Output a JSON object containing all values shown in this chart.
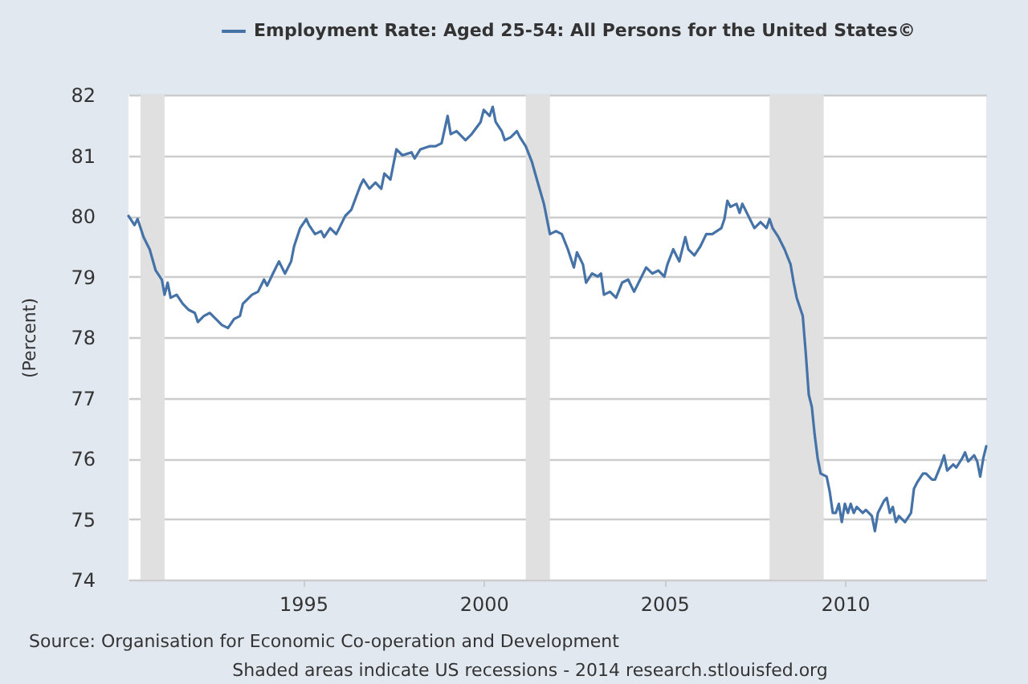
{
  "chart_data": {
    "type": "line",
    "ylabel": "(Percent)",
    "x": [
      "1990-03",
      "1990-05",
      "1990-06",
      "1990-08",
      "1990-10",
      "1990-12",
      "1991-02",
      "1991-03",
      "1991-04",
      "1991-05",
      "1991-07",
      "1991-09",
      "1991-11",
      "1992-01",
      "1992-02",
      "1992-04",
      "1992-06",
      "1992-08",
      "1992-10",
      "1992-12",
      "1993-02",
      "1993-04",
      "1993-05",
      "1993-08",
      "1993-10",
      "1993-12",
      "1994-01",
      "1994-03",
      "1994-05",
      "1994-07",
      "1994-09",
      "1994-10",
      "1994-12",
      "1995-02",
      "1995-03",
      "1995-05",
      "1995-07",
      "1995-08",
      "1995-10",
      "1995-12",
      "1996-01",
      "1996-03",
      "1996-05",
      "1996-08",
      "1996-09",
      "1996-11",
      "1997-01",
      "1997-03",
      "1997-04",
      "1997-06",
      "1997-08",
      "1997-10",
      "1998-01",
      "1998-02",
      "1998-04",
      "1998-07",
      "1998-09",
      "1998-11",
      "1999-01",
      "1999-02",
      "1999-04",
      "1999-07",
      "1999-09",
      "1999-12",
      "2000-01",
      "2000-03",
      "2000-04",
      "2000-05",
      "2000-07",
      "2000-08",
      "2000-10",
      "2000-12",
      "2001-01",
      "2001-03",
      "2001-05",
      "2001-07",
      "2001-09",
      "2001-11",
      "2002-01",
      "2002-03",
      "2002-05",
      "2002-07",
      "2002-08",
      "2002-10",
      "2002-11",
      "2003-01",
      "2003-03",
      "2003-04",
      "2003-05",
      "2003-07",
      "2003-09",
      "2003-11",
      "2004-01",
      "2004-03",
      "2004-05",
      "2004-07",
      "2004-09",
      "2004-11",
      "2005-01",
      "2005-02",
      "2005-04",
      "2005-06",
      "2005-08",
      "2005-09",
      "2005-11",
      "2006-01",
      "2006-03",
      "2006-05",
      "2006-08",
      "2006-09",
      "2006-10",
      "2006-11",
      "2007-01",
      "2007-02",
      "2007-03",
      "2007-05",
      "2007-07",
      "2007-09",
      "2007-11",
      "2007-12",
      "2008-01",
      "2008-03",
      "2008-05",
      "2008-07",
      "2008-08",
      "2008-09",
      "2008-11",
      "2008-12",
      "2009-01",
      "2009-02",
      "2009-03",
      "2009-04",
      "2009-05",
      "2009-07",
      "2009-08",
      "2009-09",
      "2009-10",
      "2009-11",
      "2009-12",
      "2010-01",
      "2010-02",
      "2010-03",
      "2010-04",
      "2010-05",
      "2010-07",
      "2010-08",
      "2010-10",
      "2010-11",
      "2010-12",
      "2011-02",
      "2011-03",
      "2011-04",
      "2011-05",
      "2011-06",
      "2011-07",
      "2011-09",
      "2011-11",
      "2011-12",
      "2012-01",
      "2012-03",
      "2012-04",
      "2012-06",
      "2012-07",
      "2012-09",
      "2012-10",
      "2012-11",
      "2013-01",
      "2013-02",
      "2013-04",
      "2013-05",
      "2013-06",
      "2013-08",
      "2013-09",
      "2013-10",
      "2013-11",
      "2013-12"
    ],
    "series": [
      {
        "name": "Employment Rate: Aged 25-54: All Persons for the United States©",
        "color": "#4572a7",
        "values": [
          80.0,
          79.85,
          79.95,
          79.65,
          79.45,
          79.1,
          78.95,
          78.7,
          78.9,
          78.65,
          78.7,
          78.55,
          78.45,
          78.4,
          78.25,
          78.35,
          78.4,
          78.3,
          78.2,
          78.15,
          78.3,
          78.35,
          78.55,
          78.7,
          78.75,
          78.95,
          78.85,
          79.05,
          79.25,
          79.05,
          79.25,
          79.5,
          79.8,
          79.95,
          79.85,
          79.7,
          79.75,
          79.65,
          79.8,
          79.7,
          79.8,
          80.0,
          80.1,
          80.5,
          80.6,
          80.45,
          80.55,
          80.45,
          80.7,
          80.6,
          81.1,
          81.0,
          81.05,
          80.95,
          81.1,
          81.15,
          81.15,
          81.2,
          81.65,
          81.35,
          81.4,
          81.25,
          81.35,
          81.55,
          81.75,
          81.65,
          81.8,
          81.55,
          81.4,
          81.25,
          81.3,
          81.4,
          81.3,
          81.15,
          80.9,
          80.55,
          80.2,
          79.7,
          79.75,
          79.7,
          79.45,
          79.15,
          79.4,
          79.2,
          78.9,
          79.05,
          79.0,
          79.05,
          78.7,
          78.75,
          78.65,
          78.9,
          78.95,
          78.75,
          78.95,
          79.15,
          79.05,
          79.1,
          79.0,
          79.2,
          79.45,
          79.25,
          79.65,
          79.45,
          79.35,
          79.5,
          79.7,
          79.7,
          79.8,
          79.95,
          80.25,
          80.15,
          80.2,
          80.05,
          80.2,
          80.0,
          79.8,
          79.9,
          79.8,
          79.95,
          79.8,
          79.65,
          79.45,
          79.2,
          78.9,
          78.65,
          78.35,
          77.75,
          77.05,
          76.85,
          76.4,
          76.0,
          75.75,
          75.7,
          75.45,
          75.1,
          75.1,
          75.25,
          74.95,
          75.25,
          75.1,
          75.25,
          75.1,
          75.2,
          75.1,
          75.15,
          75.05,
          74.8,
          75.1,
          75.3,
          75.35,
          75.1,
          75.2,
          74.95,
          75.05,
          74.95,
          75.1,
          75.5,
          75.6,
          75.75,
          75.75,
          75.65,
          75.65,
          75.9,
          76.05,
          75.8,
          75.9,
          75.85,
          76.0,
          76.1,
          75.95,
          76.05,
          75.95,
          75.7,
          76.0,
          76.2
        ]
      }
    ],
    "xlim": [
      "1990-03",
      "2013-12"
    ],
    "xticks": [
      "1995",
      "2000",
      "2005",
      "2010"
    ],
    "ylim": [
      74,
      82
    ],
    "yticks": [
      74,
      75,
      76,
      77,
      78,
      79,
      80,
      81,
      82
    ],
    "bands": [
      {
        "axis": "x",
        "from": "1990-07",
        "to": "1991-03",
        "color": "#e0e0e0"
      },
      {
        "axis": "x",
        "from": "2001-03",
        "to": "2001-11",
        "color": "#e0e0e0"
      },
      {
        "axis": "x",
        "from": "2007-12",
        "to": "2009-06",
        "color": "#e0e0e0"
      }
    ],
    "annotations": [
      "Source: Organisation for Economic Co-operation and Development",
      "Shaded areas indicate US recessions - 2014 research.stlouisfed.org"
    ],
    "grid": "y",
    "legend": "top"
  }
}
